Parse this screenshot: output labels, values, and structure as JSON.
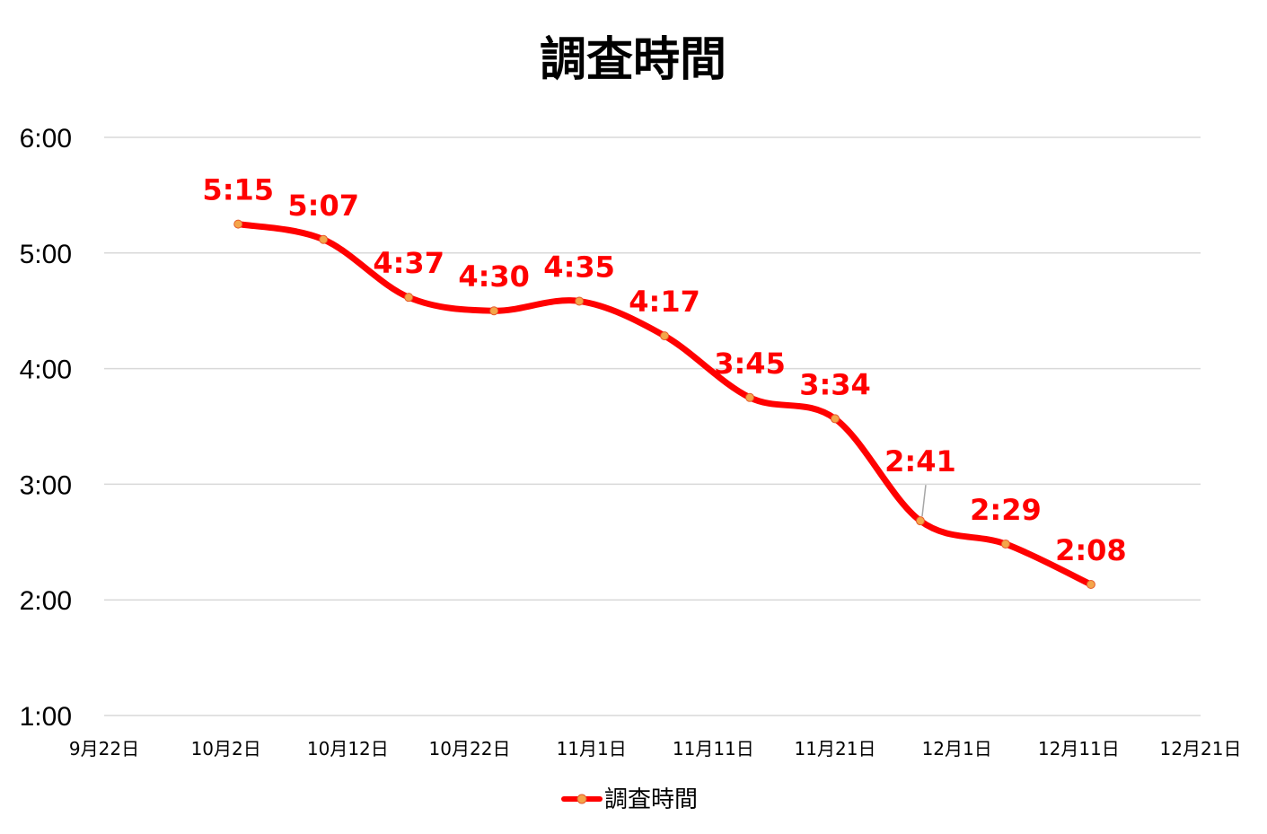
{
  "chart_data": {
    "type": "line",
    "title": "調査時間",
    "xlabel": "",
    "ylabel": "",
    "x_ticks": [
      "9月22日",
      "10月2日",
      "10月12日",
      "10月22日",
      "11月1日",
      "11月11日",
      "11月21日",
      "12月1日",
      "12月11日",
      "12月21日"
    ],
    "y_ticks": [
      "1:00",
      "2:00",
      "3:00",
      "4:00",
      "5:00",
      "6:00"
    ],
    "ylim": [
      "1:00",
      "6:00"
    ],
    "xlim": [
      "9月22日",
      "12月21日"
    ],
    "grid": true,
    "smooth": true,
    "legend_position": "bottom",
    "series": [
      {
        "name": "調査時間",
        "color": "#ff0000",
        "marker_color": "#f4a54a",
        "points": [
          {
            "x": "10月3日",
            "y": "5:15",
            "label": "5:15"
          },
          {
            "x": "10月10日",
            "y": "5:07",
            "label": "5:07"
          },
          {
            "x": "10月17日",
            "y": "4:37",
            "label": "4:37"
          },
          {
            "x": "10月24日",
            "y": "4:30",
            "label": "4:30"
          },
          {
            "x": "10月31日",
            "y": "4:35",
            "label": "4:35"
          },
          {
            "x": "11月7日",
            "y": "4:17",
            "label": "4:17"
          },
          {
            "x": "11月14日",
            "y": "3:45",
            "label": "3:45"
          },
          {
            "x": "11月21日",
            "y": "3:34",
            "label": "3:34"
          },
          {
            "x": "11月28日",
            "y": "2:41",
            "label": "2:41"
          },
          {
            "x": "12月5日",
            "y": "2:29",
            "label": "2:29"
          },
          {
            "x": "12月12日",
            "y": "2:08",
            "label": "2:08"
          }
        ]
      }
    ]
  }
}
